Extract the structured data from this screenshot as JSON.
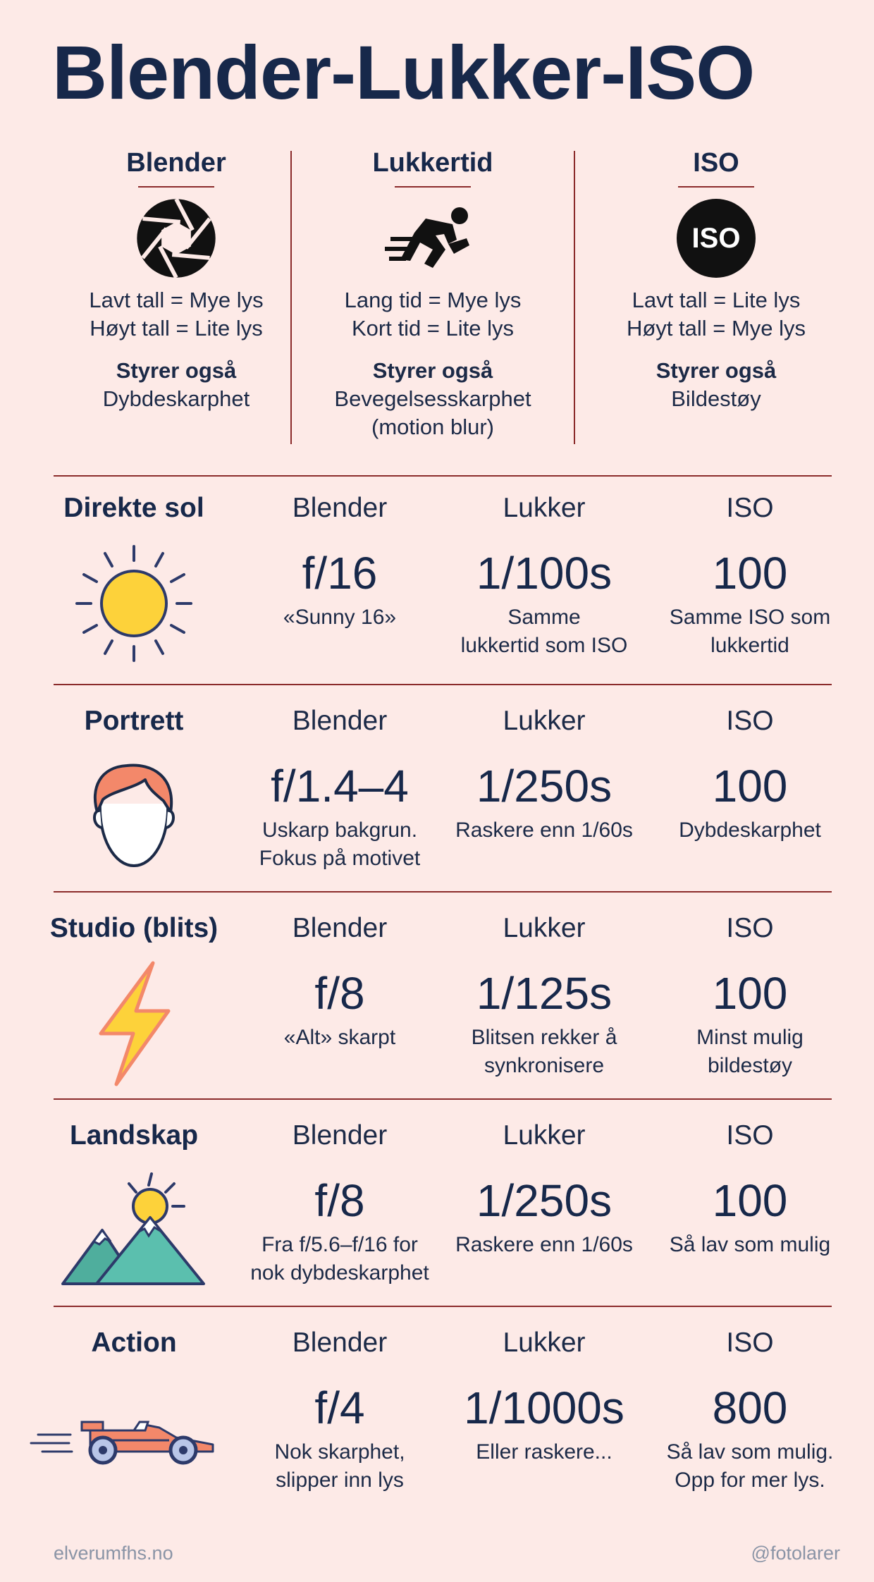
{
  "title": "Blender-Lukker-ISO",
  "top": [
    {
      "name": "Blender",
      "icon": "aperture-icon",
      "lines": [
        "Lavt tall = Mye lys",
        "Høyt tall = Lite lys"
      ],
      "also_label": "Styrer også",
      "also_value": [
        "Dybdeskarphet"
      ]
    },
    {
      "name": "Lukkertid",
      "icon": "running-man-icon",
      "lines": [
        "Lang tid = Mye lys",
        "Kort tid = Lite lys"
      ],
      "also_label": "Styrer også",
      "also_value": [
        "Bevegelsesskarphet",
        "(motion blur)"
      ]
    },
    {
      "name": "ISO",
      "icon": "iso-icon",
      "icon_text": "ISO",
      "lines": [
        "Lavt tall = Lite lys",
        "Høyt tall = Mye lys"
      ],
      "also_label": "Styrer også",
      "also_value": [
        "Bildestøy"
      ]
    }
  ],
  "rows": [
    {
      "title": "Direkte sol",
      "icon": "sun-icon",
      "cells": [
        {
          "label": "Blender",
          "value": "f/16",
          "note": [
            "«Sunny 16»"
          ]
        },
        {
          "label": "Lukker",
          "value": "1/100s",
          "note": [
            "Samme",
            "lukkertid som ISO"
          ]
        },
        {
          "label": "ISO",
          "value": "100",
          "note": [
            "Samme ISO som",
            "lukkertid"
          ]
        }
      ]
    },
    {
      "title": "Portrett",
      "icon": "face-icon",
      "cells": [
        {
          "label": "Blender",
          "value": "f/1.4–4",
          "note": [
            "Uskarp bakgrun.",
            "Fokus på motivet"
          ]
        },
        {
          "label": "Lukker",
          "value": "1/250s",
          "note": [
            "Raskere enn 1/60s"
          ]
        },
        {
          "label": "ISO",
          "value": "100",
          "note": [
            "Dybdeskarphet"
          ]
        }
      ]
    },
    {
      "title": "Studio (blits)",
      "icon": "lightning-icon",
      "cells": [
        {
          "label": "Blender",
          "value": "f/8",
          "note": [
            "«Alt» skarpt"
          ]
        },
        {
          "label": "Lukker",
          "value": "1/125s",
          "note": [
            "Blitsen rekker å",
            "synkronisere"
          ]
        },
        {
          "label": "ISO",
          "value": "100",
          "note": [
            "Minst mulig",
            "bildestøy"
          ]
        }
      ]
    },
    {
      "title": "Landskap",
      "icon": "mountain-icon",
      "cells": [
        {
          "label": "Blender",
          "value": "f/8",
          "note": [
            "Fra f/5.6–f/16 for",
            "nok dybdeskarphet"
          ]
        },
        {
          "label": "Lukker",
          "value": "1/250s",
          "note": [
            "Raskere enn 1/60s"
          ]
        },
        {
          "label": "ISO",
          "value": "100",
          "note": [
            "Så lav som mulig"
          ]
        }
      ]
    },
    {
      "title": "Action",
      "icon": "race-car-icon",
      "cells": [
        {
          "label": "Blender",
          "value": "f/4",
          "note": [
            "Nok skarphet,",
            "slipper inn lys"
          ]
        },
        {
          "label": "Lukker",
          "value": "1/1000s",
          "note": [
            "Eller raskere..."
          ]
        },
        {
          "label": "ISO",
          "value": "800",
          "note": [
            "Så lav som mulig.",
            "Opp for mer lys."
          ]
        }
      ]
    }
  ],
  "footer": {
    "left": "elverumfhs.no",
    "right": "@fotolarer"
  },
  "colors": {
    "background": "#fdeae7",
    "navy": "#17284a",
    "rule": "#8b2b2b",
    "sun": "#fdd23a",
    "skin": "#f3886a",
    "mountain": "#5bbfae"
  }
}
